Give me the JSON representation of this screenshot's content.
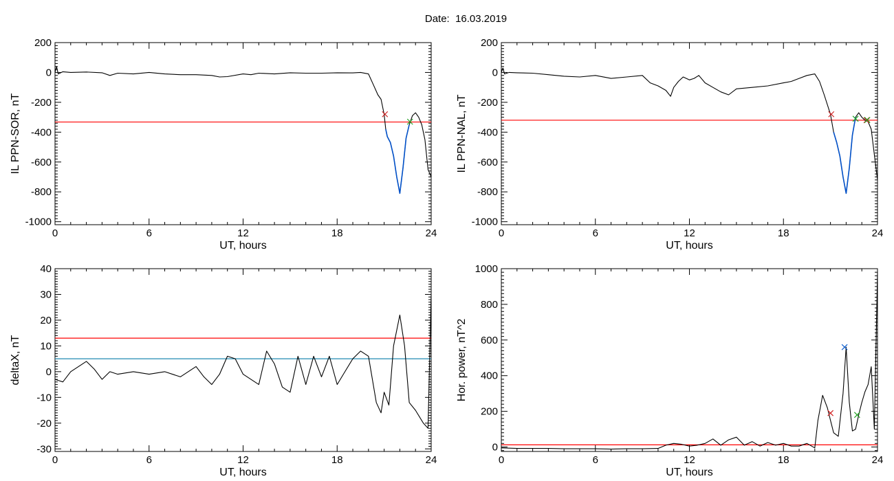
{
  "header": {
    "date_label": "Date:",
    "date_value": "16.03.2019"
  },
  "colors": {
    "signal": "#000000",
    "threshold": "#ff0000",
    "event": "#0050c8",
    "cross_red": "#d02020",
    "cross_green": "#20a020",
    "cross_blue": "#1060d0",
    "cyan_line": "#1e8ab0"
  },
  "chart_data": [
    {
      "id": "il_sor",
      "type": "line",
      "title": "",
      "xlabel": "UT, hours",
      "ylabel": "IL PPN-SOR, nT",
      "xlim": [
        0,
        24
      ],
      "ylim": [
        -1020,
        200
      ],
      "xticks": [
        0,
        6,
        12,
        18,
        24
      ],
      "yticks": [
        200,
        0,
        -200,
        -400,
        -600,
        -800,
        -1000
      ],
      "series": [
        {
          "role": "signal",
          "color": "#000000",
          "x": [
            0,
            0.1,
            0.2,
            0.5,
            1,
            2,
            3,
            3.5,
            4,
            5,
            6,
            7,
            8,
            9,
            10,
            10.5,
            11,
            12,
            12.5,
            13,
            14,
            15,
            16,
            17,
            18,
            19,
            19.5,
            20,
            20.3,
            20.6,
            20.8,
            21,
            21.1,
            21.2,
            21.4,
            21.6,
            21.8,
            22,
            22.2,
            22.4,
            22.6,
            22.8,
            23,
            23.2,
            23.4,
            23.6,
            23.8,
            24
          ],
          "y": [
            0,
            40,
            -10,
            5,
            0,
            3,
            -2,
            -20,
            -5,
            -10,
            0,
            -10,
            -15,
            -15,
            -20,
            -30,
            -28,
            -10,
            -15,
            -5,
            -10,
            -2,
            -5,
            -5,
            -2,
            -3,
            0,
            -10,
            -80,
            -150,
            -180,
            -280,
            -380,
            -430,
            -470,
            -560,
            -700,
            -810,
            -640,
            -440,
            -350,
            -290,
            -270,
            -300,
            -350,
            -450,
            -650,
            -700
          ]
        },
        {
          "role": "event",
          "color": "#0050c8",
          "x": [
            21.1,
            21.2,
            21.4,
            21.6,
            21.8,
            22,
            22.2,
            22.4,
            22.6
          ],
          "y": [
            -380,
            -430,
            -470,
            -560,
            -700,
            -810,
            -640,
            -440,
            -350
          ]
        }
      ],
      "thresholds": [
        {
          "y": -332,
          "color": "#ff0000"
        }
      ],
      "markers": [
        {
          "x": 21.05,
          "y": -280,
          "color": "#d02020"
        },
        {
          "x": 22.65,
          "y": -330,
          "color": "#20a020"
        }
      ]
    },
    {
      "id": "il_nal",
      "type": "line",
      "title": "",
      "xlabel": "UT, hours",
      "ylabel": "IL PPN-NAL, nT",
      "xlim": [
        0,
        24
      ],
      "ylim": [
        -1020,
        200
      ],
      "xticks": [
        0,
        6,
        12,
        18,
        24
      ],
      "yticks": [
        200,
        0,
        -200,
        -400,
        -600,
        -800,
        -1000
      ],
      "series": [
        {
          "role": "signal",
          "color": "#000000",
          "x": [
            0,
            0.1,
            0.2,
            0.5,
            1,
            2,
            3,
            4,
            5,
            6,
            7,
            8,
            9,
            9.5,
            10,
            10.5,
            10.8,
            11,
            11.3,
            11.6,
            12,
            12.3,
            12.6,
            13,
            13.5,
            14,
            14.5,
            15,
            16,
            17,
            18,
            18.5,
            19,
            19.5,
            20,
            20.3,
            20.6,
            21,
            21.2,
            21.4,
            21.6,
            21.8,
            22,
            22.2,
            22.4,
            22.6,
            22.8,
            23,
            23.2,
            23.4,
            23.6,
            23.8,
            24
          ],
          "y": [
            0,
            30,
            -10,
            0,
            -2,
            -5,
            -15,
            -25,
            -30,
            -20,
            -40,
            -30,
            -20,
            -70,
            -90,
            -120,
            -160,
            -100,
            -60,
            -30,
            -50,
            -40,
            -20,
            -70,
            -100,
            -130,
            -150,
            -110,
            -100,
            -90,
            -70,
            -60,
            -40,
            -20,
            -10,
            -60,
            -150,
            -280,
            -400,
            -470,
            -560,
            -700,
            -810,
            -640,
            -420,
            -300,
            -270,
            -300,
            -320,
            -330,
            -380,
            -550,
            -720
          ]
        },
        {
          "role": "event",
          "color": "#0050c8",
          "x": [
            21.2,
            21.4,
            21.6,
            21.8,
            22,
            22.2,
            22.4,
            22.6
          ],
          "y": [
            -400,
            -470,
            -560,
            -700,
            -810,
            -640,
            -420,
            -300
          ]
        }
      ],
      "thresholds": [
        {
          "y": -320,
          "color": "#ff0000"
        }
      ],
      "markers": [
        {
          "x": 21.05,
          "y": -280,
          "color": "#d02020"
        },
        {
          "x": 22.6,
          "y": -310,
          "color": "#20a020"
        },
        {
          "x": 23.3,
          "y": -320,
          "color": "#d02020"
        },
        {
          "x": 23.35,
          "y": -318,
          "color": "#20a020"
        }
      ]
    },
    {
      "id": "deltax",
      "type": "line",
      "title": "",
      "xlabel": "UT, hours",
      "ylabel": "deltaX, nT",
      "xlim": [
        0,
        24
      ],
      "ylim": [
        -31,
        40
      ],
      "xticks": [
        0,
        6,
        12,
        18,
        24
      ],
      "yticks": [
        40,
        30,
        20,
        10,
        0,
        -10,
        -20,
        -30
      ],
      "series": [
        {
          "role": "signal",
          "color": "#000000",
          "x": [
            0,
            0.5,
            1,
            1.5,
            2,
            2.5,
            3,
            3.5,
            4,
            5,
            6,
            7,
            8,
            9,
            9.5,
            10,
            10.5,
            11,
            11.5,
            12,
            12.5,
            13,
            13.5,
            14,
            14.5,
            15,
            15.5,
            16,
            16.5,
            17,
            17.5,
            18,
            18.5,
            19,
            19.5,
            20,
            20.5,
            20.8,
            21,
            21.3,
            21.6,
            22,
            22.3,
            22.6,
            23,
            23.5,
            23.8,
            24
          ],
          "y": [
            -3,
            -4,
            0,
            2,
            4,
            1,
            -3,
            0,
            -1,
            0,
            -1,
            0,
            -2,
            2,
            -2,
            -5,
            -1,
            6,
            5,
            -1,
            -3,
            -5,
            8,
            3,
            -6,
            -8,
            6,
            -5,
            6,
            -2,
            6,
            -5,
            0,
            5,
            8,
            6,
            -12,
            -16,
            -8,
            -13,
            10,
            22,
            10,
            -12,
            -15,
            -20,
            -22,
            30
          ]
        }
      ],
      "thresholds": [
        {
          "y": 13,
          "color": "#ff0000"
        },
        {
          "y": 5,
          "color": "#1e8ab0"
        }
      ],
      "markers": []
    },
    {
      "id": "hor_power",
      "type": "line",
      "title": "",
      "xlabel": "UT, hours",
      "ylabel": "Hor. power, nT^2",
      "xlim": [
        0,
        24
      ],
      "ylim": [
        -25,
        1000
      ],
      "xticks": [
        0,
        6,
        12,
        18,
        24
      ],
      "yticks": [
        1000,
        800,
        600,
        400,
        200,
        0
      ],
      "series": [
        {
          "role": "signal",
          "color": "#000000",
          "x": [
            0,
            1,
            2,
            3,
            4,
            5,
            6,
            7,
            8,
            9,
            10,
            10.5,
            11,
            11.5,
            12,
            12.5,
            13,
            13.5,
            14,
            14.5,
            15,
            15.5,
            16,
            16.5,
            17,
            17.5,
            18,
            18.5,
            19,
            19.5,
            20,
            20.2,
            20.5,
            20.8,
            21,
            21.2,
            21.5,
            21.8,
            22,
            22.2,
            22.4,
            22.6,
            22.8,
            23,
            23.2,
            23.4,
            23.6,
            23.8,
            24
          ],
          "y": [
            -5,
            -8,
            -8,
            -8,
            -10,
            -10,
            -10,
            -12,
            -10,
            -10,
            -8,
            10,
            20,
            15,
            5,
            10,
            20,
            45,
            10,
            40,
            55,
            10,
            30,
            5,
            25,
            10,
            20,
            5,
            5,
            20,
            -5,
            150,
            290,
            220,
            150,
            80,
            60,
            300,
            560,
            250,
            90,
            100,
            180,
            250,
            310,
            350,
            450,
            100,
            980
          ]
        }
      ],
      "thresholds": [
        {
          "y": 12,
          "color": "#ff0000"
        }
      ],
      "markers": [
        {
          "x": 21.0,
          "y": 190,
          "color": "#d02020"
        },
        {
          "x": 21.9,
          "y": 560,
          "color": "#1060d0"
        },
        {
          "x": 22.7,
          "y": 180,
          "color": "#20a020"
        }
      ]
    }
  ]
}
